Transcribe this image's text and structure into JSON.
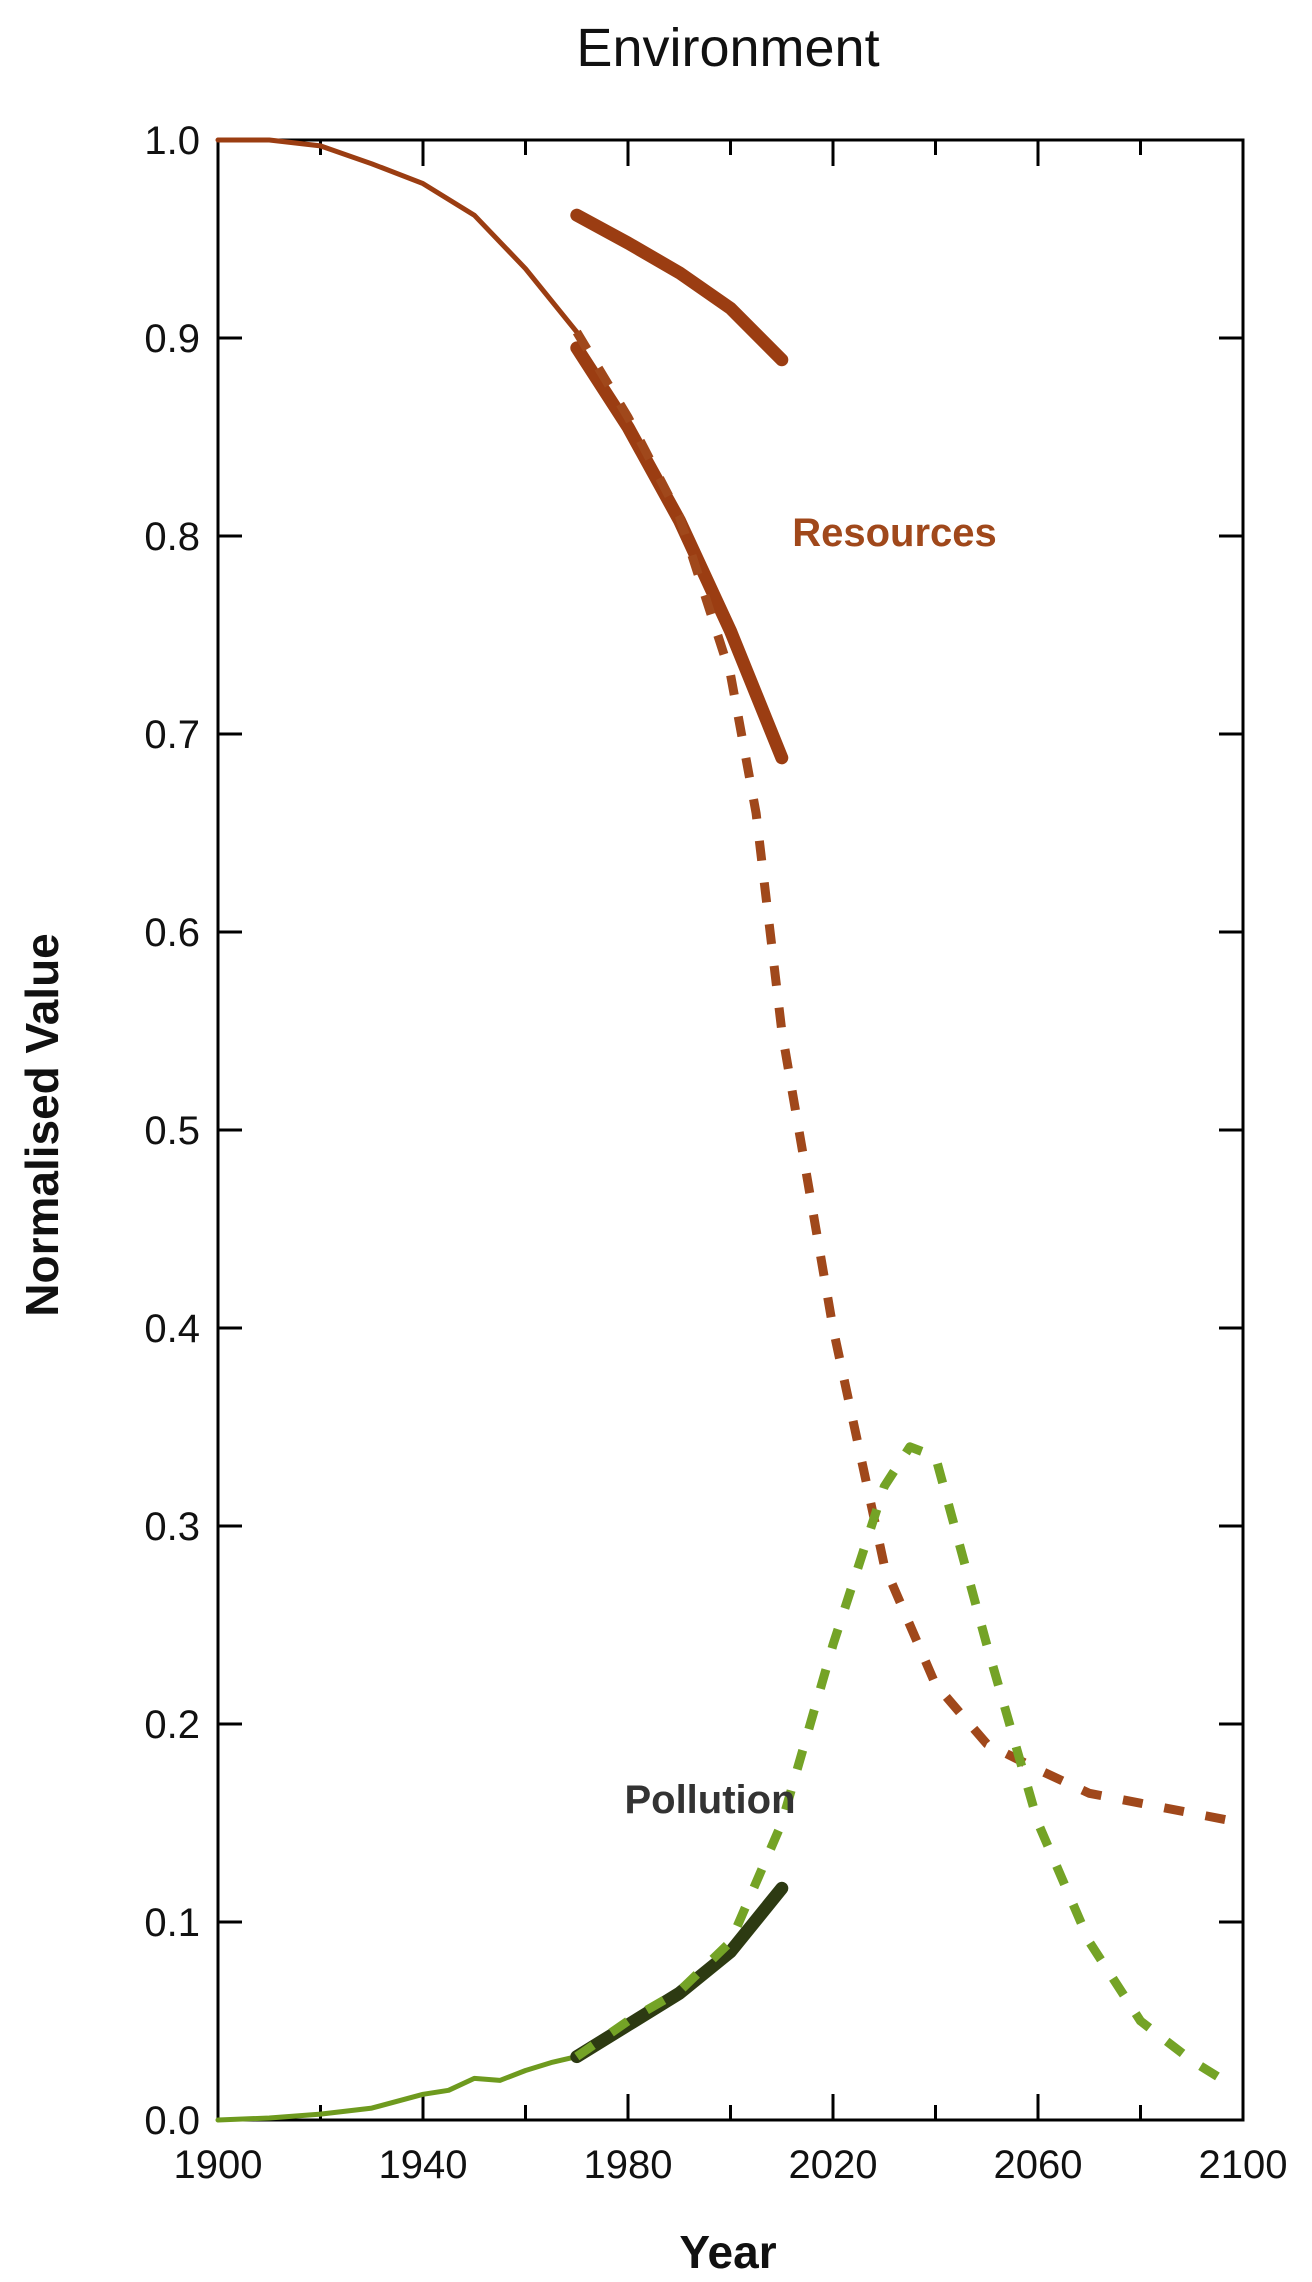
{
  "chart_data": {
    "type": "line",
    "title": "Environment",
    "xlabel": "Year",
    "ylabel": "Normalised Value",
    "xlim": [
      1900,
      2100
    ],
    "ylim": [
      0.0,
      1.0
    ],
    "x_ticks": [
      1900,
      1940,
      1980,
      2020,
      2060,
      2100
    ],
    "y_ticks": [
      "0.0",
      "0.1",
      "0.2",
      "0.3",
      "0.4",
      "0.5",
      "0.6",
      "0.7",
      "0.8",
      "0.9",
      "1.0"
    ],
    "grid": false,
    "series": [
      {
        "name": "Resources",
        "key": "resources-model-history",
        "style": "solid-thin",
        "color": "#9b3d12",
        "x": [
          1900,
          1910,
          1920,
          1930,
          1940,
          1950,
          1960,
          1970
        ],
        "y": [
          1.0,
          1.0,
          0.997,
          0.988,
          0.978,
          0.962,
          0.935,
          0.903
        ]
      },
      {
        "name": "Resources",
        "key": "resources-data-upper",
        "style": "solid-thick",
        "color": "#9b3d12",
        "x": [
          1970,
          1980,
          1990,
          2000,
          2010
        ],
        "y": [
          0.962,
          0.948,
          0.933,
          0.915,
          0.889
        ]
      },
      {
        "name": "Resources",
        "key": "resources-data-lower",
        "style": "solid-thick",
        "color": "#9b3d12",
        "x": [
          1970,
          1980,
          1990,
          2000,
          2010
        ],
        "y": [
          0.895,
          0.855,
          0.808,
          0.752,
          0.688
        ]
      },
      {
        "name": "Resources",
        "key": "resources-projection",
        "style": "dashed",
        "color": "#a0481b",
        "x": [
          1970,
          1980,
          1990,
          2000,
          2005,
          2010,
          2020,
          2030,
          2040,
          2050,
          2060,
          2070,
          2080,
          2090,
          2100
        ],
        "y": [
          0.903,
          0.86,
          0.81,
          0.73,
          0.66,
          0.55,
          0.4,
          0.28,
          0.22,
          0.19,
          0.177,
          0.165,
          0.16,
          0.155,
          0.15
        ]
      },
      {
        "name": "Pollution",
        "key": "pollution-model-history",
        "style": "solid-thin",
        "color": "#6e9a1e",
        "x": [
          1900,
          1910,
          1920,
          1930,
          1940,
          1945,
          1950,
          1955,
          1960,
          1965,
          1970
        ],
        "y": [
          0.0,
          0.001,
          0.003,
          0.006,
          0.013,
          0.015,
          0.021,
          0.02,
          0.025,
          0.029,
          0.032
        ]
      },
      {
        "name": "Pollution",
        "key": "pollution-data",
        "style": "solid-thick",
        "color": "#2d3a12",
        "x": [
          1970,
          1980,
          1990,
          2000,
          2010
        ],
        "y": [
          0.032,
          0.048,
          0.064,
          0.085,
          0.117
        ]
      },
      {
        "name": "Pollution",
        "key": "pollution-projection",
        "style": "dashed",
        "color": "#74a326",
        "x": [
          1970,
          1980,
          1990,
          2000,
          2010,
          2020,
          2030,
          2035,
          2040,
          2050,
          2060,
          2070,
          2080,
          2090,
          2095
        ],
        "y": [
          0.032,
          0.05,
          0.065,
          0.09,
          0.15,
          0.24,
          0.32,
          0.34,
          0.335,
          0.24,
          0.15,
          0.09,
          0.05,
          0.03,
          0.022
        ]
      }
    ],
    "annotations": [
      {
        "text": "Resources",
        "x": 2032,
        "y": 0.795,
        "color": "#a0481b"
      },
      {
        "text": "Pollution",
        "x": 1996,
        "y": 0.155,
        "color": "#333333"
      }
    ]
  }
}
